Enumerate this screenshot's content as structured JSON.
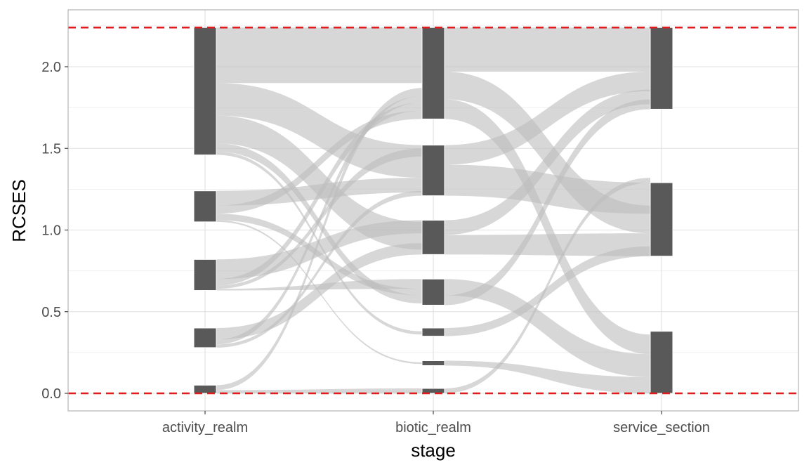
{
  "chart_data": {
    "type": "alluvial",
    "title": "",
    "xlabel": "stage",
    "ylabel": "RCSES",
    "stages": [
      "activity_realm",
      "biotic_realm",
      "service_section"
    ],
    "ylim": [
      -0.1,
      2.3
    ],
    "y_ticks": [
      0.0,
      0.5,
      1.0,
      1.5,
      2.0
    ],
    "y_tick_labels": [
      "0.0",
      "0.5",
      "1.0",
      "1.5",
      "2.0"
    ],
    "grid": true,
    "reference_lines": [
      {
        "y": 0.0,
        "color": "#e41a1c",
        "style": "dashed"
      },
      {
        "y": 2.24,
        "color": "#e41a1c",
        "style": "dashed"
      }
    ],
    "strata": {
      "activity_realm": [
        {
          "y0": 0.0,
          "y1": 0.05
        },
        {
          "y0": 0.28,
          "y1": 0.4
        },
        {
          "y0": 0.63,
          "y1": 0.82
        },
        {
          "y0": 1.05,
          "y1": 1.24
        },
        {
          "y0": 1.46,
          "y1": 2.24
        }
      ],
      "biotic_realm": [
        {
          "y0": 0.0,
          "y1": 0.03
        },
        {
          "y0": 0.17,
          "y1": 0.2
        },
        {
          "y0": 0.35,
          "y1": 0.4
        },
        {
          "y0": 0.54,
          "y1": 0.7
        },
        {
          "y0": 0.85,
          "y1": 1.06
        },
        {
          "y0": 1.21,
          "y1": 1.52
        },
        {
          "y0": 1.68,
          "y1": 2.24
        }
      ],
      "service_section": [
        {
          "y0": 0.0,
          "y1": 0.38
        },
        {
          "y0": 0.84,
          "y1": 1.29
        },
        {
          "y0": 1.74,
          "y1": 2.24
        }
      ]
    },
    "flows_activity_to_biotic": [
      {
        "a": [
          1.9,
          2.24
        ],
        "b": [
          1.9,
          2.24
        ]
      },
      {
        "a": [
          1.7,
          1.9
        ],
        "b": [
          1.32,
          1.52
        ]
      },
      {
        "a": [
          1.53,
          1.7
        ],
        "b": [
          0.88,
          1.05
        ]
      },
      {
        "a": [
          1.48,
          1.53
        ],
        "b": [
          0.55,
          0.6
        ]
      },
      {
        "a": [
          1.46,
          1.48
        ],
        "b": [
          0.36,
          0.38
        ]
      },
      {
        "a": [
          1.15,
          1.24
        ],
        "b": [
          1.23,
          1.32
        ]
      },
      {
        "a": [
          1.1,
          1.15
        ],
        "b": [
          1.68,
          1.73
        ]
      },
      {
        "a": [
          1.06,
          1.1
        ],
        "b": [
          0.6,
          0.64
        ]
      },
      {
        "a": [
          1.05,
          1.06
        ],
        "b": [
          0.18,
          0.19
        ]
      },
      {
        "a": [
          0.7,
          0.82
        ],
        "b": [
          0.98,
          1.06
        ]
      },
      {
        "a": [
          0.66,
          0.7
        ],
        "b": [
          1.73,
          1.78
        ]
      },
      {
        "a": [
          0.64,
          0.66
        ],
        "b": [
          1.45,
          1.5
        ]
      },
      {
        "a": [
          0.63,
          0.64
        ],
        "b": [
          0.64,
          0.7
        ]
      },
      {
        "a": [
          0.33,
          0.4
        ],
        "b": [
          0.85,
          0.92
        ]
      },
      {
        "a": [
          0.3,
          0.33
        ],
        "b": [
          1.78,
          1.82
        ]
      },
      {
        "a": [
          0.28,
          0.3
        ],
        "b": [
          1.21,
          1.24
        ]
      },
      {
        "a": [
          0.02,
          0.05
        ],
        "b": [
          1.82,
          1.87
        ]
      },
      {
        "a": [
          0.0,
          0.02
        ],
        "b": [
          0.0,
          0.03
        ]
      }
    ],
    "flows_biotic_to_service": [
      {
        "b": [
          1.97,
          2.24
        ],
        "c": [
          1.97,
          2.24
        ]
      },
      {
        "b": [
          1.8,
          1.97
        ],
        "c": [
          0.98,
          1.15
        ]
      },
      {
        "b": [
          1.68,
          1.8
        ],
        "c": [
          0.24,
          0.36
        ]
      },
      {
        "b": [
          1.4,
          1.52
        ],
        "c": [
          1.85,
          1.97
        ]
      },
      {
        "b": [
          1.21,
          1.4
        ],
        "c": [
          1.1,
          1.29
        ]
      },
      {
        "b": [
          0.97,
          1.06
        ],
        "c": [
          1.77,
          1.86
        ]
      },
      {
        "b": [
          0.85,
          0.97
        ],
        "c": [
          0.84,
          0.98
        ]
      },
      {
        "b": [
          0.6,
          0.7
        ],
        "c": [
          0.1,
          0.24
        ]
      },
      {
        "b": [
          0.54,
          0.6
        ],
        "c": [
          1.74,
          1.8
        ]
      },
      {
        "b": [
          0.35,
          0.4
        ],
        "c": [
          0.84,
          0.9
        ]
      },
      {
        "b": [
          0.17,
          0.2
        ],
        "c": [
          0.0,
          0.1
        ]
      },
      {
        "b": [
          0.0,
          0.03
        ],
        "c": [
          1.29,
          1.32
        ]
      }
    ],
    "colors": {
      "stratum": "#595959",
      "flow": "#bdbdbd",
      "reference_line": "#e41a1c",
      "grid": "#e0e0e0",
      "panel_border": "#b3b3b3"
    }
  }
}
